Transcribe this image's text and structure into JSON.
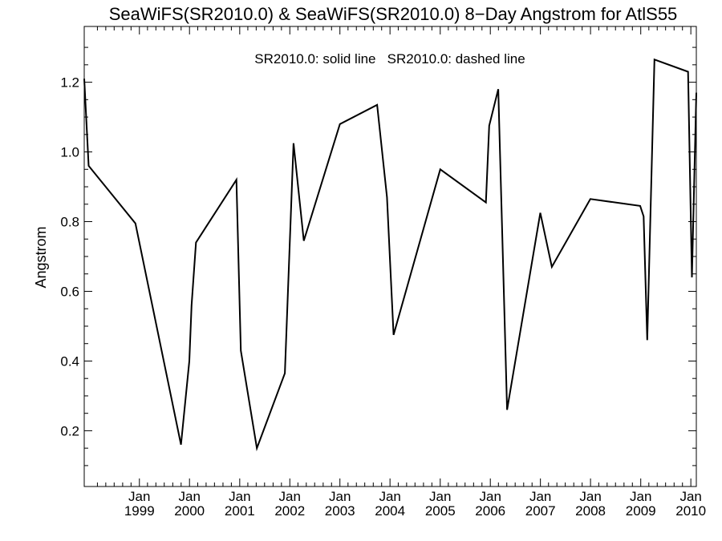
{
  "chart_data": {
    "type": "line",
    "title": "SeaWiFS(SR2010.0) & SeaWiFS(SR2010.0) 8−Day Angstrom for AtlS55",
    "annotation": "SR2010.0: solid line   SR2010.0: dashed line",
    "xlabel": "",
    "ylabel": "Angstrom",
    "xlim": [
      "1997-11-25",
      "2010-02-10"
    ],
    "ylim": [
      0.04,
      1.36
    ],
    "y_ticks": [
      "0.2",
      "0.4",
      "0.6",
      "0.8",
      "1.0",
      "1.2"
    ],
    "x_ticks": [
      {
        "month": "Jan",
        "year": "1999",
        "date": "1999-01-01"
      },
      {
        "month": "Jan",
        "year": "2000",
        "date": "2000-01-01"
      },
      {
        "month": "Jan",
        "year": "2001",
        "date": "2001-01-01"
      },
      {
        "month": "Jan",
        "year": "2002",
        "date": "2002-01-01"
      },
      {
        "month": "Jan",
        "year": "2003",
        "date": "2003-01-01"
      },
      {
        "month": "Jan",
        "year": "2004",
        "date": "2004-01-01"
      },
      {
        "month": "Jan",
        "year": "2005",
        "date": "2005-01-01"
      },
      {
        "month": "Jan",
        "year": "2006",
        "date": "2006-01-01"
      },
      {
        "month": "Jan",
        "year": "2007",
        "date": "2007-01-01"
      },
      {
        "month": "Jan",
        "year": "2008",
        "date": "2008-01-01"
      },
      {
        "month": "Jan",
        "year": "2009",
        "date": "2009-01-01"
      },
      {
        "month": "Jan",
        "year": "2010",
        "date": "2010-01-01"
      }
    ],
    "grid": false,
    "series": [
      {
        "name": "SR2010.0",
        "style": "solid",
        "color": "#000000",
        "x": [
          "1997-11-25",
          "1997-12-27",
          "1998-12-03",
          "1999-10-31",
          "1999-12-31",
          "2000-01-16",
          "2000-02-17",
          "2000-12-08",
          "2001-01-09",
          "2001-05-06",
          "2001-11-26",
          "2002-01-28",
          "2002-04-13",
          "2003-01-01",
          "2003-09-29",
          "2003-12-10",
          "2004-01-27",
          "2005-01-01",
          "2005-11-30",
          "2005-12-24",
          "2006-02-28",
          "2006-05-03",
          "2006-12-31",
          "2007-03-25",
          "2007-12-31",
          "2008-12-28",
          "2009-01-22",
          "2009-02-17",
          "2009-04-11",
          "2009-12-12",
          "2010-01-09",
          "2010-02-10"
        ],
        "y": [
          1.21,
          0.96,
          0.795,
          0.16,
          0.4,
          0.56,
          0.74,
          0.92,
          0.43,
          0.15,
          0.365,
          1.025,
          0.745,
          1.08,
          1.135,
          0.87,
          0.475,
          0.95,
          0.855,
          1.075,
          1.18,
          0.26,
          0.825,
          0.67,
          0.865,
          0.845,
          0.815,
          0.46,
          1.265,
          1.23,
          0.64,
          1.17
        ]
      }
    ]
  }
}
